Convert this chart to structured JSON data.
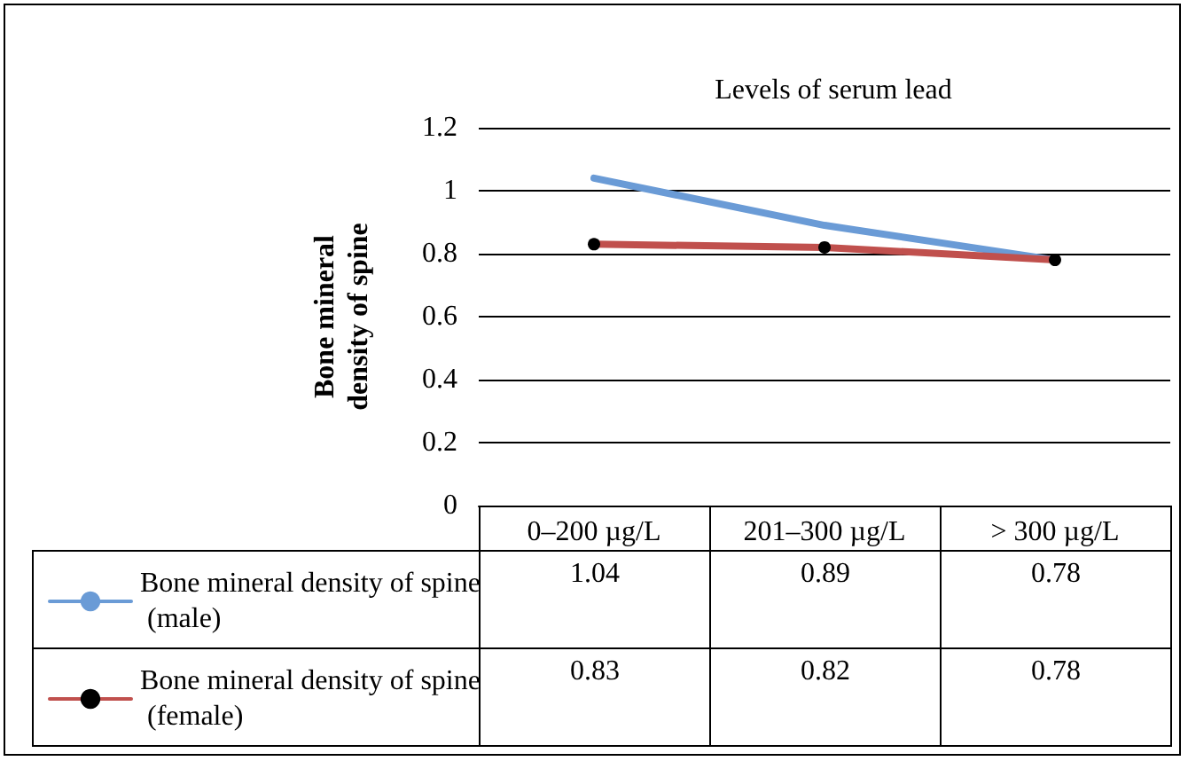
{
  "chart_data": {
    "type": "line",
    "title": "Levels of serum lead",
    "ylabel": "Bone mineral density of spine",
    "categories": [
      "0–200 µg/L",
      "201–300 µg/L",
      "> 300 µg/L"
    ],
    "series": [
      {
        "name": "Bone mineral density of spine (male)",
        "color": "#6a9bd6",
        "values": [
          1.04,
          0.89,
          0.78
        ]
      },
      {
        "name": "Bone mineral density of spine (female)",
        "color": "#c0504d",
        "values": [
          0.83,
          0.82,
          0.78
        ],
        "marker": "circle"
      }
    ],
    "ylim": [
      0,
      1.2
    ],
    "yticks": [
      0,
      0.2,
      0.4,
      0.6,
      0.8,
      1,
      1.2
    ],
    "grid": "y",
    "legend": "bottom",
    "data_labels": true
  }
}
